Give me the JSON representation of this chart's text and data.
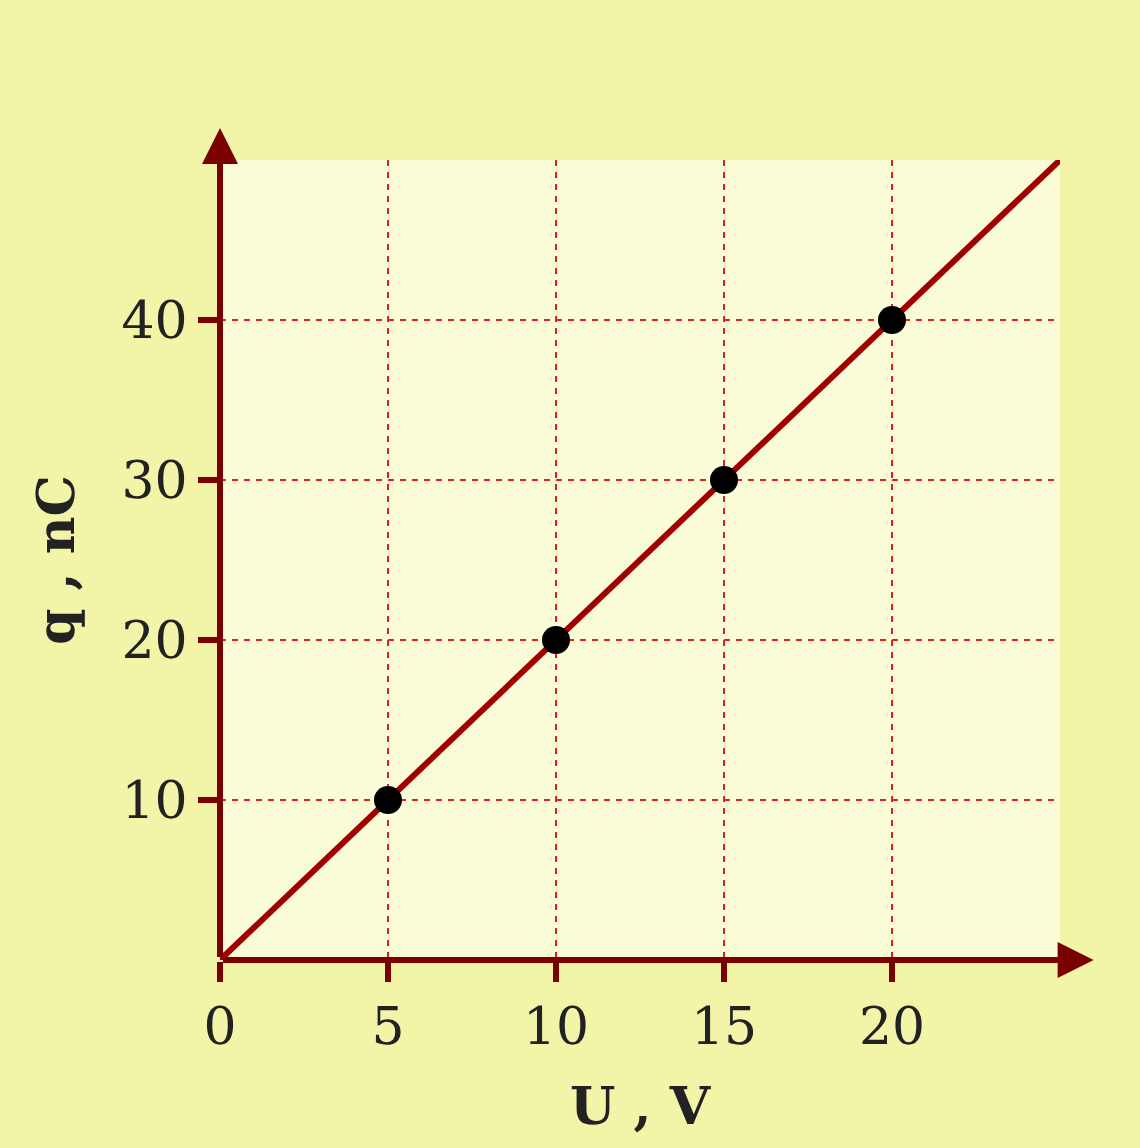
{
  "chart_data": {
    "type": "line",
    "xlabel": "U , V",
    "ylabel": "q , nC",
    "xlim": [
      0,
      25
    ],
    "ylim": [
      0,
      50
    ],
    "xticks": [
      0,
      5,
      10,
      15,
      20
    ],
    "yticks": [
      10,
      20,
      30,
      40
    ],
    "grid": true,
    "series": [
      {
        "color": "#a00000",
        "x": [
          0,
          25
        ],
        "values": [
          0,
          50
        ],
        "marker": "none",
        "line_style": "solid"
      },
      {
        "type": "scatter",
        "color": "#000000",
        "x": [
          5,
          10,
          15,
          20
        ],
        "values": [
          10,
          20,
          30,
          40
        ],
        "marker": "circle"
      }
    ]
  }
}
